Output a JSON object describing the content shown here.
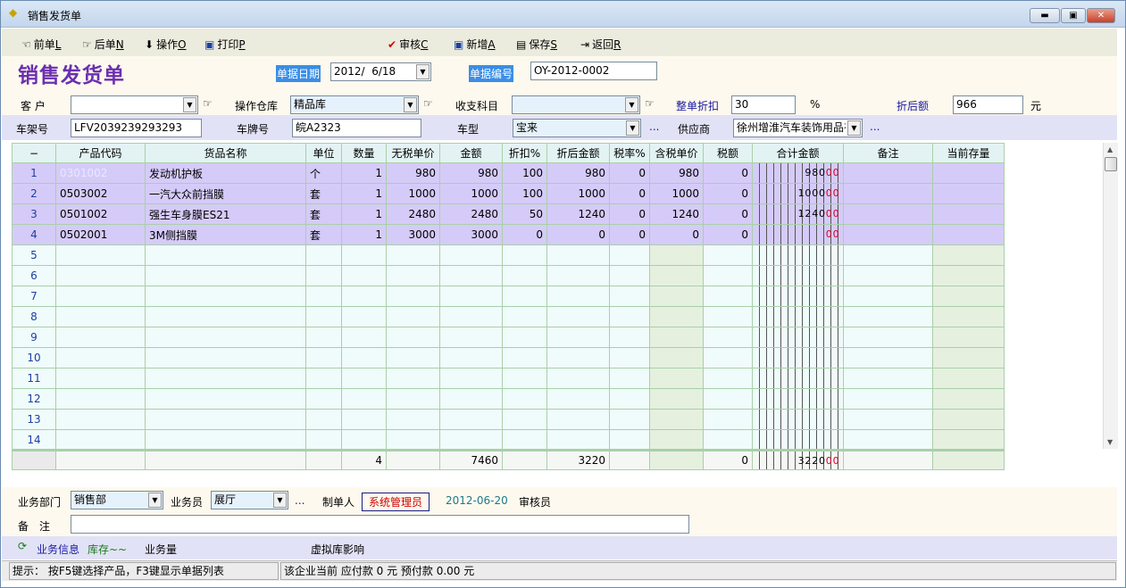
{
  "window": {
    "title": "销售发货单",
    "icon": "app-diamond-icon",
    "controls": [
      "minimize",
      "maximize",
      "close"
    ]
  },
  "toolbar": {
    "prev": {
      "label": "前单",
      "key": "L",
      "icon": "hand-left-icon"
    },
    "next": {
      "label": "后单",
      "key": "N",
      "icon": "hand-right-icon"
    },
    "operate": {
      "label": "操作",
      "key": "O",
      "icon": "arrow-down-icon"
    },
    "print": {
      "label": "打印",
      "key": "P",
      "icon": "print-icon"
    },
    "audit": {
      "label": "审核",
      "key": "C",
      "icon": "checkmark-icon"
    },
    "add": {
      "label": "新增",
      "key": "A",
      "icon": "add-doc-icon"
    },
    "save": {
      "label": "保存",
      "key": "S",
      "icon": "floppy-icon"
    },
    "back": {
      "label": "返回",
      "key": "R",
      "icon": "exit-icon"
    }
  },
  "form": {
    "title": "销售发货单",
    "date_label": "单据日期",
    "date": "2012/  6/18",
    "no_label": "单据编号",
    "no": "OY-2012-0002",
    "customer_label": "客 户",
    "customer": "",
    "warehouse_label": "操作仓库",
    "warehouse": "精品库",
    "account_label": "收支科目",
    "account": "",
    "discount_label": "整单折扣",
    "discount": "30",
    "percent": "%",
    "after_label": "折后额",
    "after": "966",
    "yuan": "元",
    "vin_label": "车架号",
    "vin": "LFV2039239293293",
    "plate_label": "车牌号",
    "plate": "皖A2323",
    "model_label": "车型",
    "model": "宝来",
    "supplier_label": "供应商",
    "supplier": "徐州增淮汽车装饰用品有",
    "ellipsis": "..."
  },
  "grid": {
    "columns": [
      "−",
      "产品代码",
      "货品名称",
      "单位",
      "数量",
      "无税单价",
      "金额",
      "折扣%",
      "折后金额",
      "税率%",
      "含税单价",
      "税额",
      "合计金额",
      "备注",
      "当前存量"
    ],
    "rows": [
      {
        "no": "1",
        "code": "0301002",
        "name": "发动机护板",
        "unit": "个",
        "qty": "1",
        "price": "980",
        "amount": "980",
        "disc": "100",
        "disc_amt": "980",
        "tax_rate": "0",
        "tax_price": "980",
        "tax": "0",
        "total": "98000",
        "note": "",
        "stock": ""
      },
      {
        "no": "2",
        "code": "0503002",
        "name": "一汽大众前挡膜",
        "unit": "套",
        "qty": "1",
        "price": "1000",
        "amount": "1000",
        "disc": "100",
        "disc_amt": "1000",
        "tax_rate": "0",
        "tax_price": "1000",
        "tax": "0",
        "total": "100000",
        "note": "",
        "stock": ""
      },
      {
        "no": "3",
        "code": "0501002",
        "name": "强生车身膜ES21",
        "unit": "套",
        "qty": "1",
        "price": "2480",
        "amount": "2480",
        "disc": "50",
        "disc_amt": "1240",
        "tax_rate": "0",
        "tax_price": "1240",
        "tax": "0",
        "total": "124000",
        "note": "",
        "stock": ""
      },
      {
        "no": "4",
        "code": "0502001",
        "name": "3M侧挡膜",
        "unit": "套",
        "qty": "1",
        "price": "3000",
        "amount": "3000",
        "disc": "0",
        "disc_amt": "0",
        "tax_rate": "0",
        "tax_price": "0",
        "tax": "0",
        "total": "00",
        "note": "",
        "stock": ""
      }
    ],
    "empty_rows": [
      "5",
      "6",
      "7",
      "8",
      "9",
      "10",
      "11",
      "12",
      "13",
      "14"
    ],
    "totals": {
      "qty": "4",
      "amount": "7460",
      "disc_amt": "3220",
      "tax": "0",
      "total": "322000"
    }
  },
  "bottom": {
    "dept_label": "业务部门",
    "dept": "销售部",
    "clerk_label": "业务员",
    "clerk": "展厅",
    "ellipsis": "...",
    "maker_label": "制单人",
    "maker": "系统管理员",
    "maker_date": "2012-06-20",
    "auditor_label": "审核员",
    "remark_label": "备　注",
    "remark": ""
  },
  "info": {
    "biz": "业务信息",
    "stock": "库存~~",
    "volume": "业务量",
    "virtual": "虚拟库影响"
  },
  "status": {
    "hint": "提示： 按F5键选择产品，F3键显示单据列表",
    "balance": "该企业当前 应付款 0 元 预付款 0.00 元"
  },
  "colors": {
    "title": "#6b2fb0",
    "filled_row": "#d5cbf8",
    "empty_row": "#f0fbfb",
    "red_digits": "#d8002a"
  }
}
